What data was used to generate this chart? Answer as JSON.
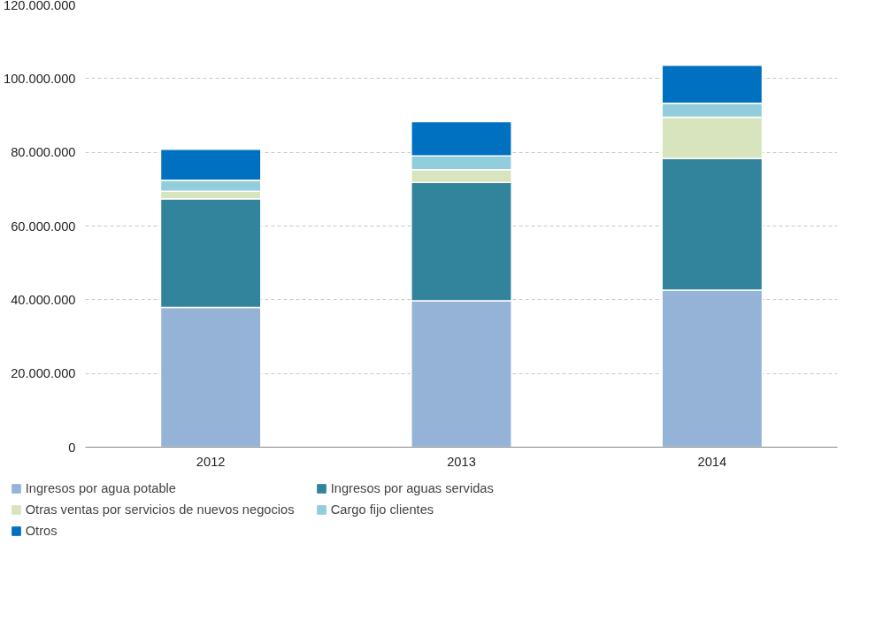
{
  "chart_data": {
    "type": "bar",
    "stacked": true,
    "categories": [
      "2012",
      "2013",
      "2014"
    ],
    "series": [
      {
        "name": "Ingresos por agua potable",
        "color": "#95b3d7",
        "values": [
          37900000,
          39700000,
          42600000
        ]
      },
      {
        "name": "Ingresos por aguas servidas",
        "color": "#31849b",
        "values": [
          29500000,
          32100000,
          35700000
        ]
      },
      {
        "name": "Otras ventas por servicios de nuevos negocios",
        "color": "#d7e4bd",
        "values": [
          2000000,
          3500000,
          11200000
        ]
      },
      {
        "name": "Cargo fijo clientes",
        "color": "#92cddc",
        "values": [
          3000000,
          3700000,
          3800000
        ]
      },
      {
        "name": "Otros",
        "color": "#0070c0",
        "values": [
          8400000,
          9300000,
          10300000
        ]
      }
    ],
    "ylim": [
      0,
      120000000
    ],
    "yticks": [
      {
        "value": 0,
        "label": "0"
      },
      {
        "value": 20000000,
        "label": "20.000.000"
      },
      {
        "value": 40000000,
        "label": "40.000.000"
      },
      {
        "value": 60000000,
        "label": "60.000.000"
      },
      {
        "value": 80000000,
        "label": "80.000.000"
      },
      {
        "value": 100000000,
        "label": "100.000.000"
      },
      {
        "value": 120000000,
        "label": "120.000.000"
      }
    ],
    "grid": "y",
    "legend": "bottom"
  }
}
